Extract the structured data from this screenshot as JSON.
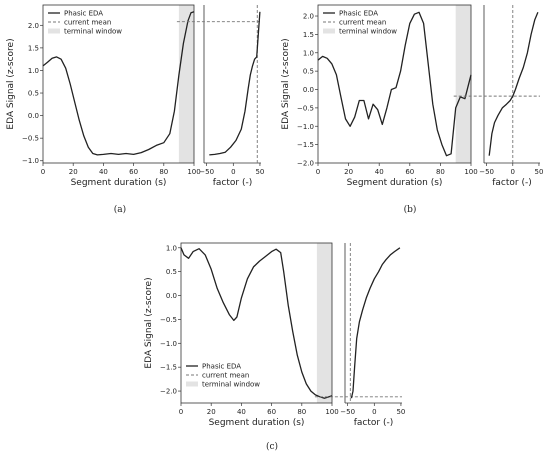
{
  "legend": {
    "phasic": "Phasic EDA",
    "current_mean": "current mean",
    "terminal_window": "terminal window"
  },
  "colors": {
    "signal": "#222222",
    "mean": "#777777",
    "window": "#e3e3e3",
    "axis": "#333333"
  },
  "chart_data": [
    {
      "type": "line",
      "caption": "(a)",
      "xlabel": "Segment duration (s)",
      "ylabel": "EDA Signal (z-score)",
      "xlim": [
        0,
        100
      ],
      "ylim": [
        -1.05,
        2.45
      ],
      "xticks": [
        0,
        20,
        40,
        60,
        80,
        100
      ],
      "yticks": [
        -1.0,
        -0.5,
        0.0,
        0.5,
        1.0,
        1.5,
        2.0
      ],
      "ytick_labels": [
        "-1.0",
        "-0.5",
        "0.0",
        "0.5",
        "1.0",
        "1.5",
        "2.0"
      ],
      "terminal_window": [
        90,
        100
      ],
      "series": [
        {
          "name": "Phasic EDA",
          "x": [
            0,
            3,
            6,
            9,
            12,
            15,
            18,
            21,
            24,
            27,
            30,
            33,
            36,
            40,
            45,
            50,
            55,
            60,
            65,
            70,
            75,
            80,
            84,
            87,
            90,
            93,
            96,
            98,
            100
          ],
          "y": [
            1.1,
            1.18,
            1.27,
            1.3,
            1.25,
            1.05,
            0.7,
            0.3,
            -0.1,
            -0.45,
            -0.7,
            -0.84,
            -0.87,
            -0.86,
            -0.84,
            -0.86,
            -0.84,
            -0.86,
            -0.82,
            -0.75,
            -0.66,
            -0.6,
            -0.4,
            0.1,
            0.9,
            1.6,
            2.1,
            2.28,
            2.3
          ]
        }
      ],
      "current_mean": 2.08,
      "factor_panel": {
        "xlabel": "factor (-)",
        "xlim": [
          -55,
          52
        ],
        "xticks": [
          -50,
          0,
          50
        ],
        "mean_factor": 45,
        "curve": {
          "factor": [
            -45,
            -35,
            -25,
            -15,
            -5,
            5,
            15,
            22,
            28,
            32,
            36,
            40,
            44,
            47,
            50
          ],
          "y": [
            -0.87,
            -0.86,
            -0.84,
            -0.81,
            -0.7,
            -0.55,
            -0.3,
            0.1,
            0.6,
            0.9,
            1.1,
            1.25,
            1.3,
            1.8,
            2.3
          ]
        }
      }
    },
    {
      "type": "line",
      "caption": "(b)",
      "xlabel": "Segment duration (s)",
      "ylabel": "EDA Signal (z-score)",
      "xlim": [
        0,
        100
      ],
      "ylim": [
        -2.0,
        2.3
      ],
      "xticks": [
        0,
        20,
        40,
        60,
        80,
        100
      ],
      "yticks": [
        -2.0,
        -1.5,
        -1.0,
        -0.5,
        0.0,
        0.5,
        1.0,
        1.5,
        2.0
      ],
      "ytick_labels": [
        "-2.0",
        "-1.5",
        "-1.0",
        "-0.5",
        "0.0",
        "0.5",
        "1.0",
        "1.5",
        "2.0"
      ],
      "terminal_window": [
        90,
        100
      ],
      "series": [
        {
          "name": "Phasic EDA",
          "x": [
            0,
            3,
            6,
            9,
            12,
            15,
            18,
            21,
            24,
            27,
            30,
            33,
            36,
            39,
            42,
            45,
            48,
            51,
            54,
            57,
            60,
            63,
            66,
            69,
            72,
            75,
            78,
            81,
            84,
            87,
            90,
            93,
            96,
            100
          ],
          "y": [
            0.8,
            0.9,
            0.85,
            0.7,
            0.4,
            -0.2,
            -0.8,
            -1.0,
            -0.75,
            -0.3,
            -0.3,
            -0.8,
            -0.4,
            -0.55,
            -0.95,
            -0.5,
            0.0,
            0.05,
            0.5,
            1.2,
            1.8,
            2.05,
            2.1,
            1.8,
            0.7,
            -0.4,
            -1.1,
            -1.5,
            -1.8,
            -1.75,
            -0.5,
            -0.2,
            -0.25,
            0.4
          ]
        }
      ],
      "current_mean": -0.18,
      "factor_panel": {
        "xlabel": "factor (-)",
        "xlim": [
          -55,
          52
        ],
        "xticks": [
          -50,
          0,
          50
        ],
        "mean_factor": 0,
        "curve": {
          "factor": [
            -45,
            -40,
            -35,
            -28,
            -20,
            -12,
            -5,
            0,
            5,
            12,
            20,
            28,
            35,
            42,
            48
          ],
          "y": [
            -1.8,
            -1.2,
            -0.9,
            -0.7,
            -0.5,
            -0.4,
            -0.3,
            -0.18,
            0.0,
            0.3,
            0.6,
            1.0,
            1.5,
            1.9,
            2.1
          ]
        }
      }
    },
    {
      "type": "line",
      "caption": "(c)",
      "xlabel": "Segment duration (s)",
      "ylabel": "EDA Signal (z-score)",
      "xlim": [
        0,
        100
      ],
      "ylim": [
        -2.25,
        1.1
      ],
      "xticks": [
        0,
        20,
        40,
        60,
        80,
        100
      ],
      "yticks": [
        -2.0,
        -1.5,
        -1.0,
        -0.5,
        0.0,
        0.5,
        1.0
      ],
      "ytick_labels": [
        "-2.0",
        "-1.5",
        "-1.0",
        "-0.5",
        "0.0",
        "0.5",
        "1.0"
      ],
      "terminal_window": [
        90,
        100
      ],
      "series": [
        {
          "name": "Phasic EDA",
          "x": [
            0,
            2,
            5,
            8,
            12,
            16,
            20,
            24,
            28,
            32,
            35,
            37,
            40,
            44,
            48,
            52,
            56,
            60,
            63,
            66,
            68,
            71,
            74,
            77,
            80,
            83,
            86,
            89,
            92,
            95,
            98,
            100
          ],
          "y": [
            1.0,
            0.85,
            0.78,
            0.92,
            0.98,
            0.85,
            0.55,
            0.15,
            -0.15,
            -0.4,
            -0.52,
            -0.45,
            -0.05,
            0.35,
            0.6,
            0.72,
            0.82,
            0.92,
            0.97,
            0.9,
            0.5,
            -0.2,
            -0.75,
            -1.25,
            -1.6,
            -1.85,
            -2.0,
            -2.08,
            -2.12,
            -2.15,
            -2.12,
            -2.1
          ]
        }
      ],
      "current_mean": -2.12,
      "factor_panel": {
        "xlabel": "factor (-)",
        "xlim": [
          -55,
          52
        ],
        "xticks": [
          -50,
          0,
          50
        ],
        "mean_factor": -45,
        "curve": {
          "factor": [
            -43,
            -40,
            -37,
            -33,
            -28,
            -22,
            -15,
            -8,
            0,
            8,
            15,
            22,
            30,
            38,
            48
          ],
          "y": [
            -2.15,
            -2.0,
            -1.5,
            -0.9,
            -0.55,
            -0.3,
            -0.05,
            0.15,
            0.35,
            0.5,
            0.65,
            0.75,
            0.85,
            0.92,
            1.0
          ]
        }
      }
    }
  ]
}
